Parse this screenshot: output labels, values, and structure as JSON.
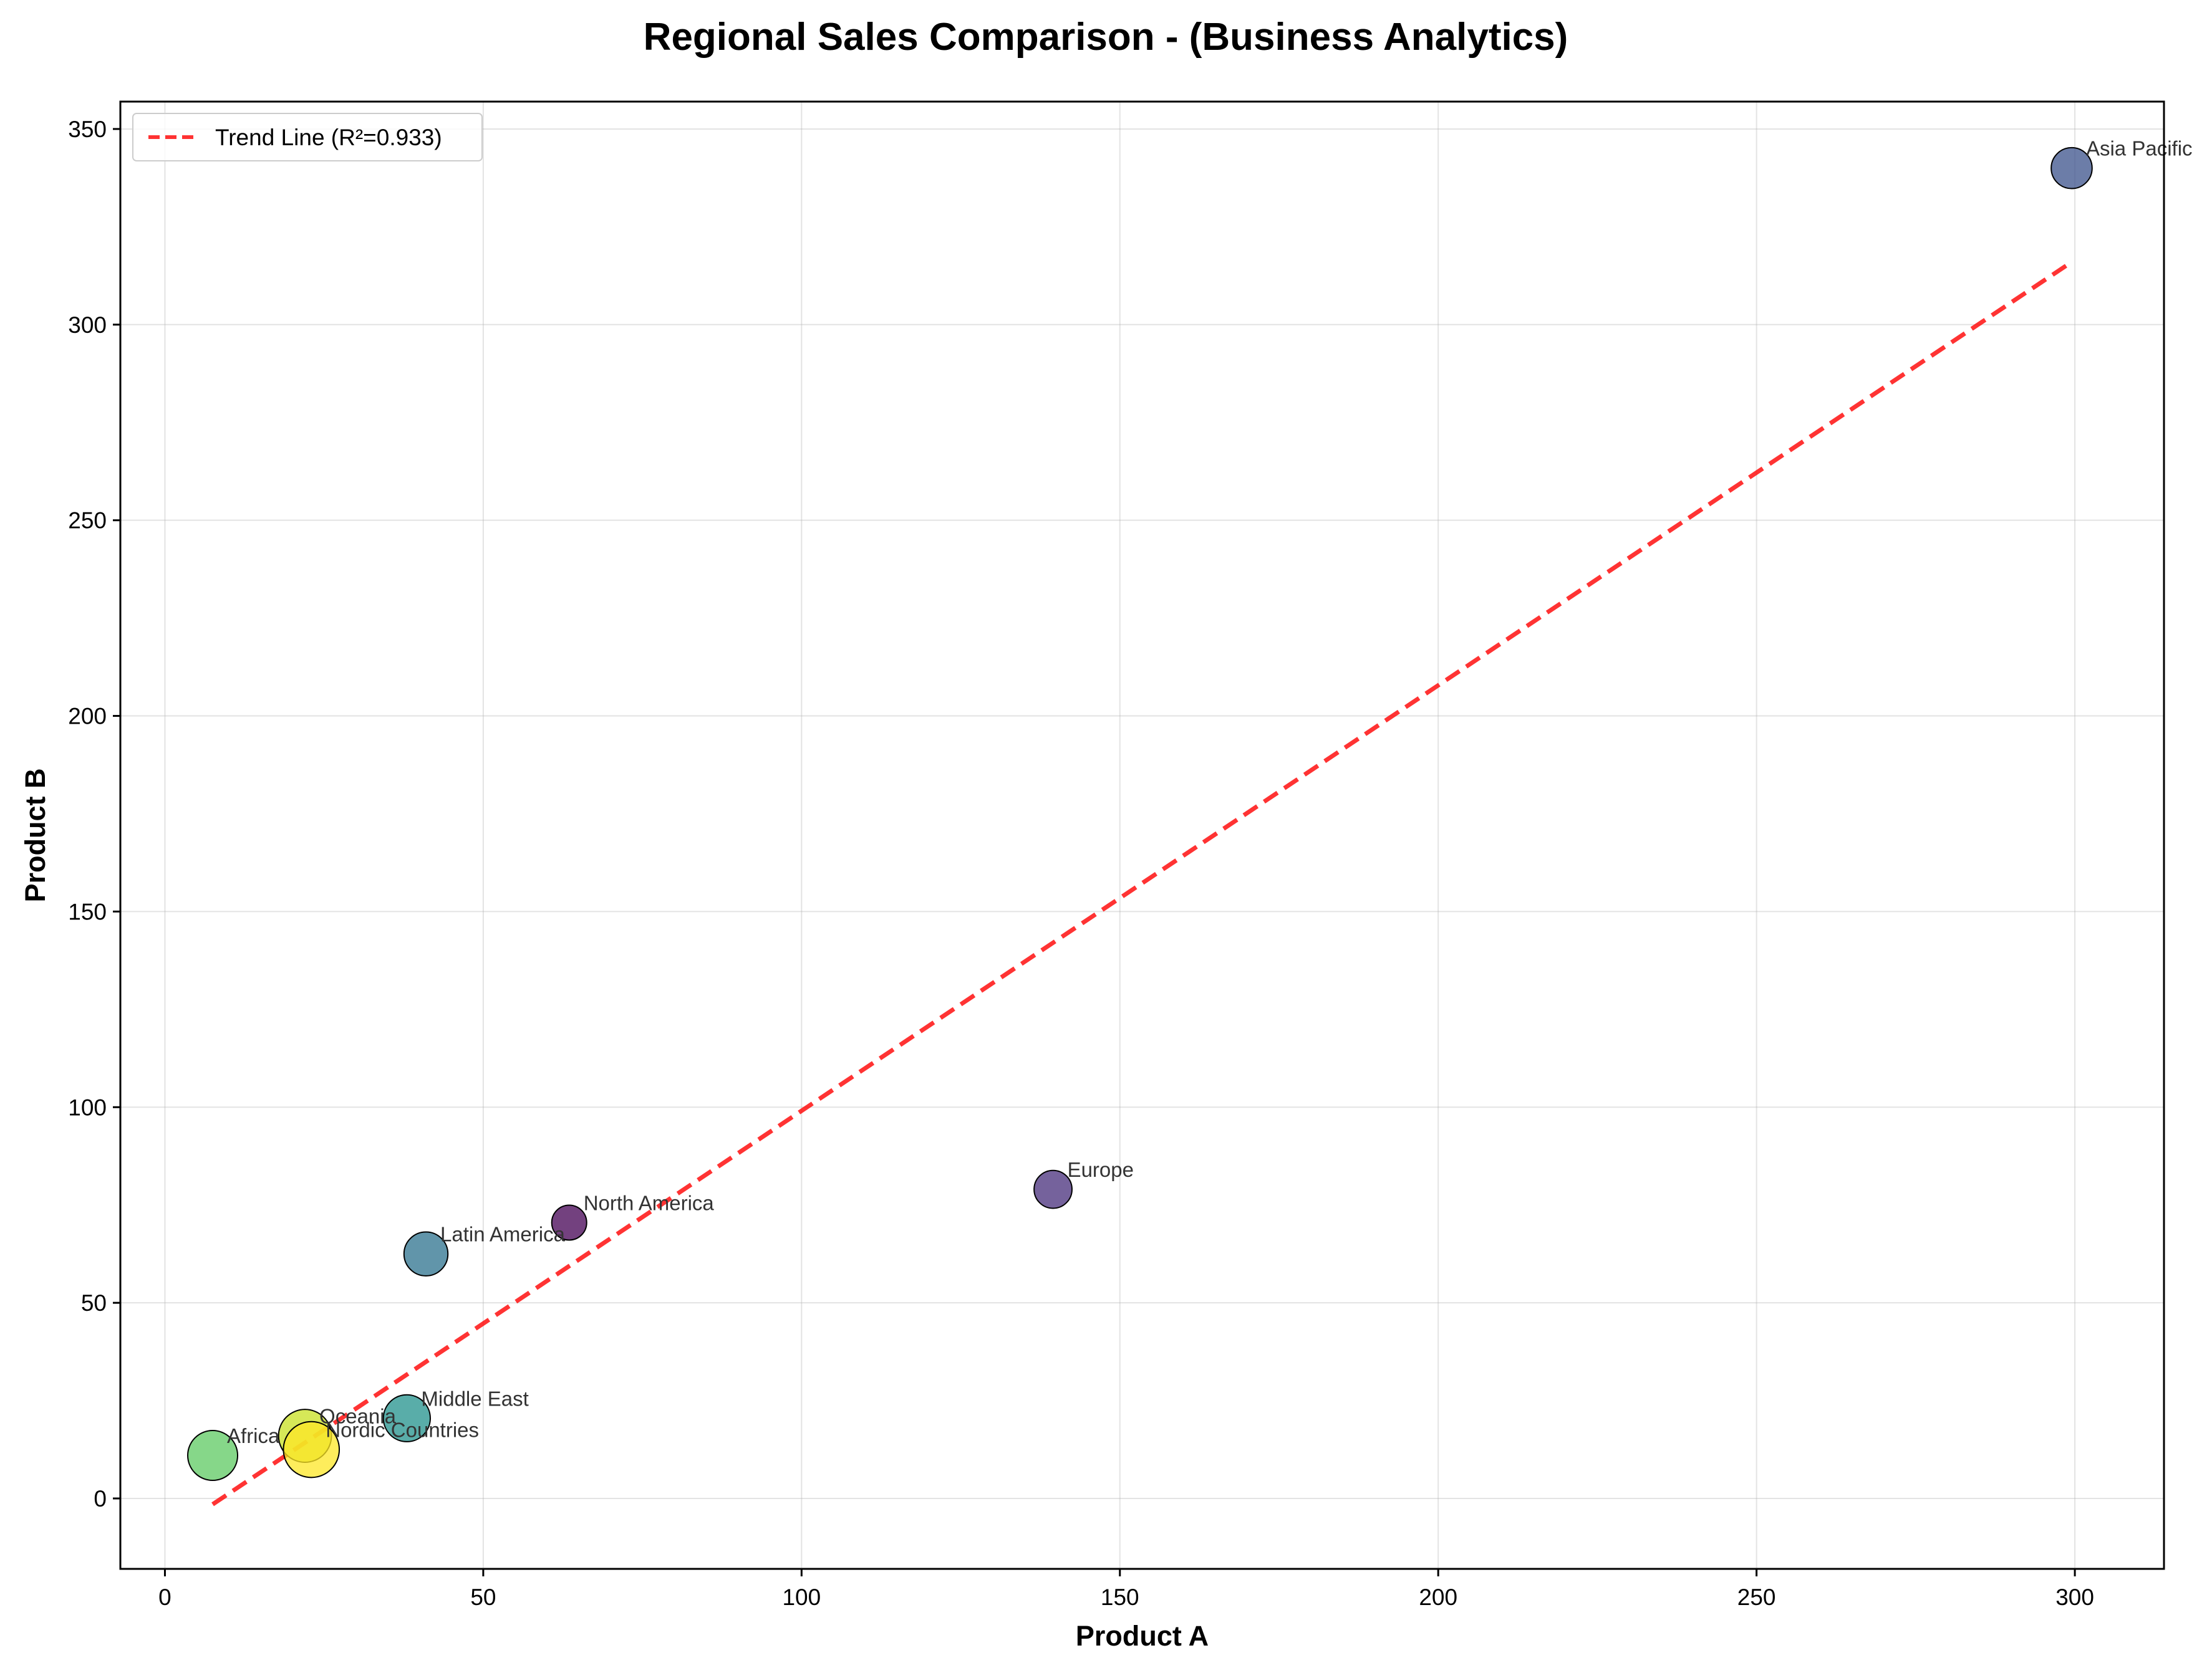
{
  "chart_data": {
    "type": "scatter",
    "title": "Regional Sales Comparison - (Business Analytics)",
    "xlabel": "Product A",
    "ylabel": "Product B",
    "xlim": [
      -7,
      314
    ],
    "ylim": [
      -18,
      357
    ],
    "xticks": [
      0,
      50,
      100,
      150,
      200,
      250,
      300
    ],
    "yticks": [
      0,
      50,
      100,
      150,
      200,
      250,
      300,
      350
    ],
    "grid": true,
    "legend_position": "upper-left",
    "points": [
      {
        "label": "North America",
        "x": 63.5,
        "y": 70.5,
        "size": 10,
        "color": "#440154"
      },
      {
        "label": "Europe",
        "x": 139.5,
        "y": 79,
        "size": 11,
        "color": "#472d7b"
      },
      {
        "label": "Asia Pacific",
        "x": 299.5,
        "y": 340,
        "size": 12,
        "color": "#3b528b"
      },
      {
        "label": "Latin America",
        "x": 41,
        "y": 62.5,
        "size": 13,
        "color": "#2c728e"
      },
      {
        "label": "Middle East",
        "x": 38,
        "y": 20.5,
        "size": 14,
        "color": "#21918c"
      },
      {
        "label": "Africa",
        "x": 7.5,
        "y": 11,
        "size": 15,
        "color": "#5ec962"
      },
      {
        "label": "Oceania",
        "x": 22,
        "y": 16,
        "size": 16,
        "color": "#c8e020"
      },
      {
        "label": "Nordic Countries",
        "x": 23,
        "y": 12.5,
        "size": 17,
        "color": "#fde725"
      }
    ],
    "trend_line": {
      "label": "Trend Line (R²=0.933)",
      "x": [
        7.5,
        299.5
      ],
      "y": [
        -1.5,
        316
      ],
      "color": "#ff0000"
    }
  }
}
